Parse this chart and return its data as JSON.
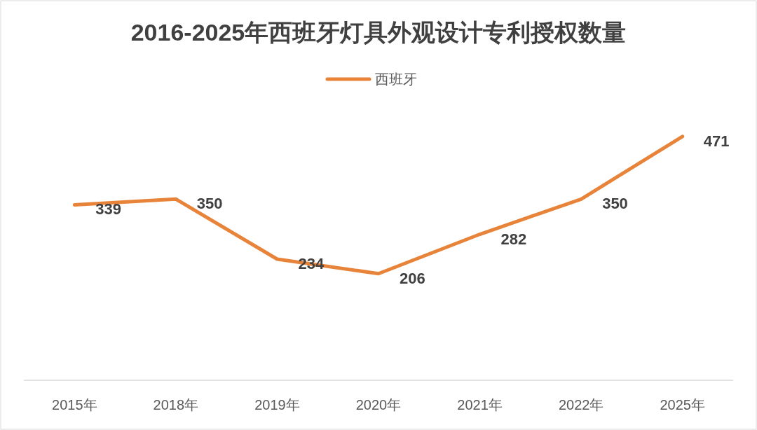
{
  "chart_data": {
    "type": "line",
    "title": "2016-2025年西班牙灯具外观设计专利授权数量",
    "categories": [
      "2015年",
      "2018年",
      "2019年",
      "2020年",
      "2021年",
      "2022年",
      "2025年"
    ],
    "series": [
      {
        "name": "西班牙",
        "color": "#e8843a",
        "values": [
          339,
          350,
          234,
          206,
          282,
          350,
          471
        ]
      }
    ],
    "data_labels": true,
    "legend": "top",
    "marker": "none",
    "line_style": "solid"
  }
}
